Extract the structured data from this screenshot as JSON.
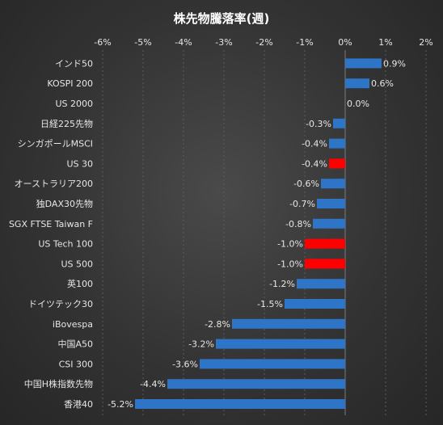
{
  "chart_data": {
    "type": "bar",
    "orientation": "horizontal",
    "title": "株先物騰落率(週)",
    "x_ticks": [
      "-6%",
      "-5%",
      "-4%",
      "-3%",
      "-2%",
      "-1%",
      "0%",
      "1%",
      "2%"
    ],
    "xlim": [
      -6,
      2
    ],
    "unit": "%",
    "grid": true,
    "categories": [
      "インド50",
      "KOSPI 200",
      "US 2000",
      "日経225先物",
      "シンガポールMSCI",
      "US 30",
      "オーストラリア200",
      "独DAX30先物",
      "SGX FTSE Taiwan F",
      "US Tech 100",
      "US 500",
      "英100",
      "ドイツテック30",
      "iBovespa",
      "中国A50",
      "CSI 300",
      "中国H株指数先物",
      "香港40"
    ],
    "values": [
      0.9,
      0.6,
      0.0,
      -0.3,
      -0.4,
      -0.4,
      -0.6,
      -0.7,
      -0.8,
      -1.0,
      -1.0,
      -1.2,
      -1.5,
      -2.8,
      -3.2,
      -3.6,
      -4.4,
      -5.2
    ],
    "labels": [
      "0.9%",
      "0.6%",
      "0.0%",
      "-0.3%",
      "-0.4%",
      "-0.4%",
      "-0.6%",
      "-0.7%",
      "-0.8%",
      "-1.0%",
      "-1.0%",
      "-1.2%",
      "-1.5%",
      "-2.8%",
      "-3.2%",
      "-3.6%",
      "-4.4%",
      "-5.2%"
    ],
    "highlighted": [
      "US 30",
      "US Tech 100",
      "US 500"
    ],
    "colors": {
      "default": "#2e75c7",
      "highlight": "#ff0000"
    }
  }
}
